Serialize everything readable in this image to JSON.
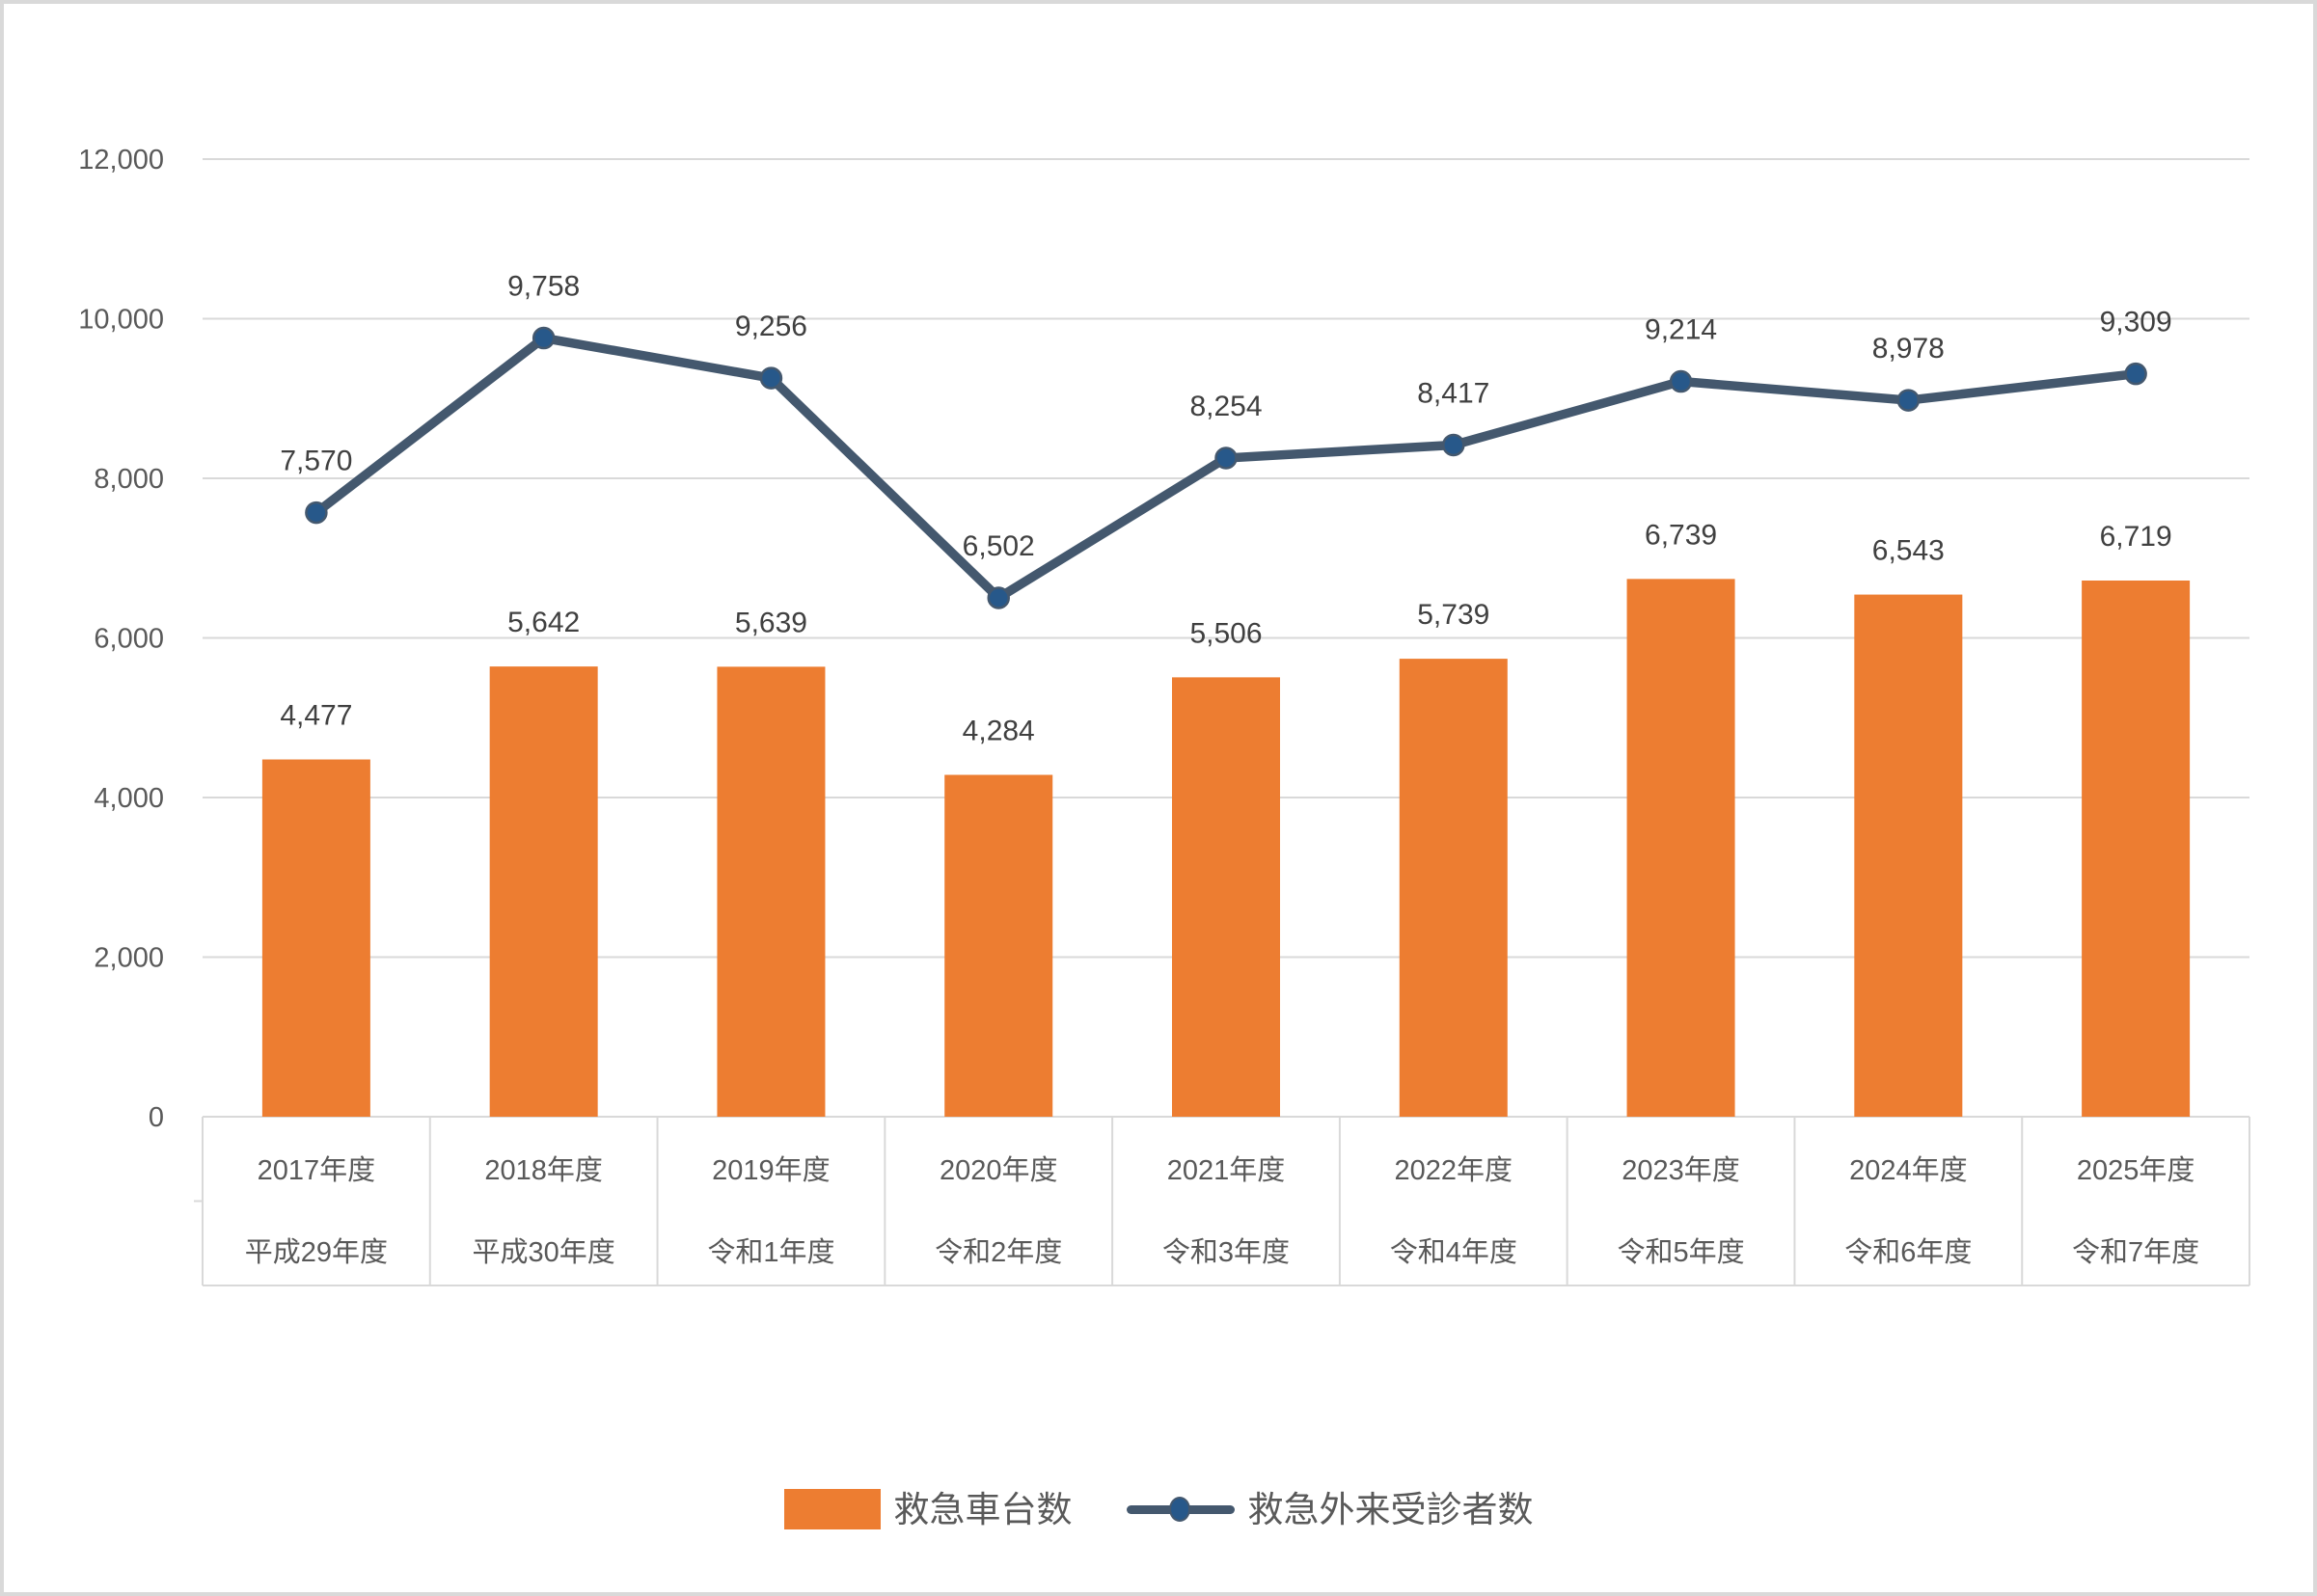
{
  "chart_data": {
    "type": "bar+line combo",
    "title": "",
    "categories": [
      "2017年度",
      "2018年度",
      "2019年度",
      "2020年度",
      "2021年度",
      "2022年度",
      "2023年度",
      "2024年度",
      "2025年度"
    ],
    "categories_era": [
      "平成29年度",
      "平成30年度",
      "令和1年度",
      "令和2年度",
      "令和3年度",
      "令和4年度",
      "令和5年度",
      "令和6年度",
      "令和7年度"
    ],
    "series": [
      {
        "name": "救急車台数",
        "type": "bar",
        "color": "#ED7D31",
        "values": [
          4477,
          5642,
          5639,
          4284,
          5506,
          5739,
          6739,
          6543,
          6719
        ],
        "labels": [
          "4,477",
          "5,642",
          "5,639",
          "4,284",
          "5,506",
          "5,739",
          "6,739",
          "6,543",
          "6,719"
        ]
      },
      {
        "name": "救急外来受診者数",
        "type": "line",
        "color": "#44586E",
        "marker_color": "#27588A",
        "values": [
          7570,
          9758,
          9256,
          6502,
          8254,
          8417,
          9214,
          8978,
          9309
        ],
        "labels": [
          "7,570",
          "9,758",
          "9,256",
          "6,502",
          "8,254",
          "8,417",
          "9,214",
          "8,978",
          "9,309"
        ]
      }
    ],
    "ylim": [
      0,
      12000
    ],
    "ytick_interval": 2000,
    "yticks": [
      "0",
      "2,000",
      "4,000",
      "6,000",
      "8,000",
      "10,000",
      "12,000"
    ],
    "grid": true,
    "legend_position": "bottom",
    "xlabel": "",
    "ylabel": ""
  },
  "colors": {
    "bar": "#ED7D31",
    "line": "#44586E",
    "marker": "#27588A",
    "grid": "#D9D9D9",
    "frame_border": "#D9D9D9",
    "axis_text": "#595959",
    "data_label_text": "#404040",
    "background": "#FFFFFF"
  }
}
